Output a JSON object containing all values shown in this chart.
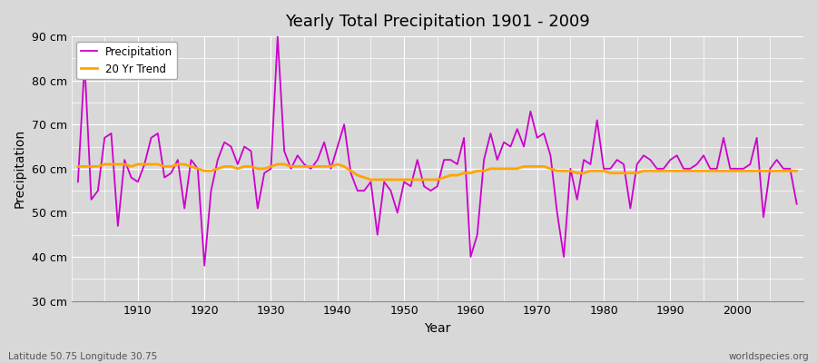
{
  "title": "Yearly Total Precipitation 1901 - 2009",
  "xlabel": "Year",
  "ylabel": "Precipitation",
  "bottom_left_label": "Latitude 50.75 Longitude 30.75",
  "bottom_right_label": "worldspecies.org",
  "ylim": [
    30,
    90
  ],
  "yticks": [
    30,
    40,
    50,
    60,
    70,
    80,
    90
  ],
  "ytick_labels": [
    "30 cm",
    "40 cm",
    "50 cm",
    "60 cm",
    "70 cm",
    "80 cm",
    "90 cm"
  ],
  "xticks": [
    1910,
    1920,
    1930,
    1940,
    1950,
    1960,
    1970,
    1980,
    1990,
    2000
  ],
  "precip_color": "#CC00CC",
  "trend_color": "#FFA500",
  "background_color": "#D8D8D8",
  "plot_bg_color": "#D8D8D8",
  "grid_color": "#FFFFFF",
  "years": [
    1901,
    1902,
    1903,
    1904,
    1905,
    1906,
    1907,
    1908,
    1909,
    1910,
    1911,
    1912,
    1913,
    1914,
    1915,
    1916,
    1917,
    1918,
    1919,
    1920,
    1921,
    1922,
    1923,
    1924,
    1925,
    1926,
    1927,
    1928,
    1929,
    1930,
    1931,
    1932,
    1933,
    1934,
    1935,
    1936,
    1937,
    1938,
    1939,
    1940,
    1941,
    1942,
    1943,
    1944,
    1945,
    1946,
    1947,
    1948,
    1949,
    1950,
    1951,
    1952,
    1953,
    1954,
    1955,
    1956,
    1957,
    1958,
    1959,
    1960,
    1961,
    1962,
    1963,
    1964,
    1965,
    1966,
    1967,
    1968,
    1969,
    1970,
    1971,
    1972,
    1973,
    1974,
    1975,
    1976,
    1977,
    1978,
    1979,
    1980,
    1981,
    1982,
    1983,
    1984,
    1985,
    1986,
    1987,
    1988,
    1989,
    1990,
    1991,
    1992,
    1993,
    1994,
    1995,
    1996,
    1997,
    1998,
    1999,
    2000,
    2001,
    2002,
    2003,
    2004,
    2005,
    2006,
    2007,
    2008,
    2009
  ],
  "precipitation": [
    57,
    84,
    53,
    55,
    67,
    68,
    47,
    62,
    58,
    57,
    61,
    67,
    68,
    58,
    59,
    62,
    51,
    62,
    60,
    38,
    55,
    62,
    66,
    65,
    61,
    65,
    64,
    51,
    59,
    60,
    90,
    64,
    60,
    63,
    61,
    60,
    62,
    66,
    60,
    65,
    70,
    59,
    55,
    55,
    57,
    45,
    57,
    55,
    50,
    57,
    56,
    62,
    56,
    55,
    56,
    62,
    62,
    61,
    67,
    40,
    45,
    62,
    68,
    62,
    66,
    65,
    69,
    65,
    73,
    67,
    68,
    63,
    50,
    40,
    60,
    53,
    62,
    61,
    71,
    60,
    60,
    62,
    61,
    51,
    61,
    63,
    62,
    60,
    60,
    62,
    63,
    60,
    60,
    61,
    63,
    60,
    60,
    67,
    60,
    60,
    60,
    61,
    67,
    49,
    60,
    62,
    60,
    60,
    52
  ],
  "trend": [
    60.5,
    60.5,
    60.5,
    60.5,
    61,
    61,
    61,
    61,
    60.5,
    61,
    61,
    61,
    61,
    60.5,
    60.5,
    61,
    61,
    60.5,
    60,
    59.5,
    59.5,
    60,
    60.5,
    60.5,
    60,
    60.5,
    60.5,
    60,
    60,
    60.5,
    61,
    61,
    60.5,
    60.5,
    60.5,
    60.5,
    60.5,
    60.5,
    60.5,
    61,
    60.5,
    59.5,
    58.5,
    58,
    57.5,
    57.5,
    57.5,
    57.5,
    57.5,
    57.5,
    57.5,
    57.5,
    57.5,
    57.5,
    57.5,
    58,
    58.5,
    58.5,
    59,
    59,
    59.5,
    59.5,
    60,
    60,
    60,
    60,
    60,
    60.5,
    60.5,
    60.5,
    60.5,
    60,
    59.5,
    59.5,
    59.5,
    59,
    59,
    59.5,
    59.5,
    59.5,
    59,
    59,
    59,
    59,
    59,
    59.5,
    59.5,
    59.5,
    59.5,
    59.5,
    59.5,
    59.5,
    59.5,
    59.5,
    59.5,
    59.5,
    59.5,
    59.5,
    59.5,
    59.5,
    59.5,
    59.5,
    59.5,
    59.5,
    59.5,
    59.5,
    59.5,
    59.5,
    59.5
  ]
}
